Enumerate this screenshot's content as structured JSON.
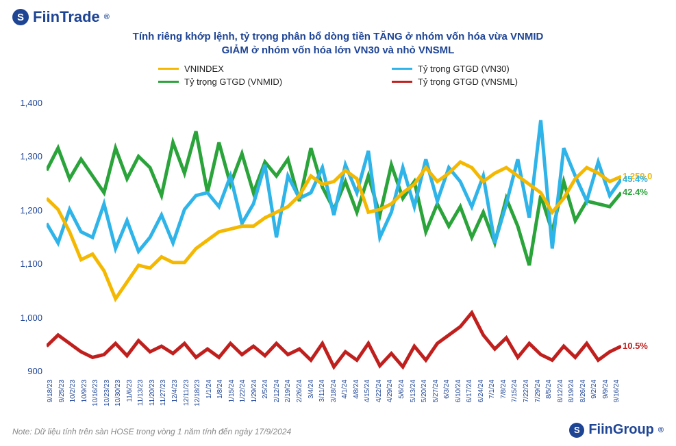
{
  "brand_top": "FiinTrade",
  "brand_bottom": "FiinGroup",
  "brand_reg": "®",
  "title_line1": "Tính riêng khớp lệnh, tỷ trọng phân bổ dòng tiền TĂNG ở nhóm vốn hóa vừa VNMID",
  "title_line2": "GIẢM ở nhóm vốn hóa lớn VN30 và nhỏ VNSML",
  "legend": {
    "vnindex": "VNINDEX",
    "vn30": "Tỷ trọng GTGD (VN30)",
    "vnmid": "Tỷ trọng GTGD (VNMID)",
    "vnsml": "Tỷ trọng GTGD (VNSML)"
  },
  "note": "Note: Dữ liệu tính trên sàn HOSE trong vòng 1 năm tính đến ngày 17/9/2024",
  "chart": {
    "type": "line",
    "background_color": "#ffffff",
    "line_width": 1.6,
    "ylim": [
      900,
      1400
    ],
    "ytick_step": 100,
    "yticks": [
      "1,400",
      "1,300",
      "1,200",
      "1,100",
      "1,000",
      "900"
    ],
    "axis_color": "#1e4494",
    "label_fontsize": 13,
    "xlabels": [
      "9/18/23",
      "9/25/23",
      "10/2/23",
      "10/9/23",
      "10/16/23",
      "10/23/23",
      "10/30/23",
      "11/6/23",
      "11/13/23",
      "11/20/23",
      "11/27/23",
      "12/4/23",
      "12/11/23",
      "12/18/23",
      "1/1/24",
      "1/8/24",
      "1/15/24",
      "1/22/24",
      "1/29/24",
      "2/5/24",
      "2/12/24",
      "2/19/24",
      "2/26/24",
      "3/4/24",
      "3/11/24",
      "3/18/24",
      "4/1/24",
      "4/8/24",
      "4/15/24",
      "4/22/24",
      "4/29/24",
      "5/6/24",
      "5/13/24",
      "5/20/24",
      "5/27/24",
      "6/3/24",
      "6/10/24",
      "6/17/24",
      "6/24/24",
      "7/1/24",
      "7/8/24",
      "7/15/24",
      "7/22/24",
      "7/29/24",
      "8/5/24",
      "8/12/24",
      "8/19/24",
      "8/26/24",
      "9/2/24",
      "9/9/24",
      "9/16/24"
    ],
    "series": {
      "vnindex": {
        "color": "#f5b800",
        "end_label": "1,259.0",
        "data": [
          1220,
          1200,
          1160,
          1110,
          1120,
          1090,
          1040,
          1070,
          1100,
          1095,
          1115,
          1105,
          1105,
          1130,
          1145,
          1160,
          1165,
          1170,
          1170,
          1185,
          1195,
          1205,
          1225,
          1260,
          1245,
          1250,
          1270,
          1255,
          1195,
          1200,
          1210,
          1230,
          1245,
          1275,
          1250,
          1265,
          1285,
          1275,
          1250,
          1265,
          1275,
          1260,
          1245,
          1230,
          1195,
          1220,
          1255,
          1275,
          1265,
          1250,
          1259
        ]
      },
      "vn30": {
        "color": "#2fb4e9",
        "end_label": "45.4%",
        "data": [
          1175,
          1140,
          1200,
          1160,
          1150,
          1210,
          1130,
          1180,
          1125,
          1150,
          1190,
          1140,
          1200,
          1225,
          1230,
          1205,
          1260,
          1175,
          1210,
          1280,
          1150,
          1260,
          1220,
          1230,
          1275,
          1190,
          1280,
          1230,
          1305,
          1150,
          1195,
          1275,
          1205,
          1290,
          1215,
          1275,
          1250,
          1205,
          1260,
          1140,
          1210,
          1290,
          1185,
          1360,
          1130,
          1310,
          1260,
          1215,
          1285,
          1225,
          1254
        ]
      },
      "vnmid": {
        "color": "#2aa43a",
        "end_label": "42.4%",
        "data": [
          1270,
          1310,
          1255,
          1290,
          1260,
          1230,
          1310,
          1255,
          1295,
          1275,
          1225,
          1320,
          1265,
          1340,
          1230,
          1320,
          1245,
          1300,
          1230,
          1285,
          1260,
          1290,
          1215,
          1310,
          1240,
          1200,
          1250,
          1195,
          1260,
          1190,
          1280,
          1220,
          1250,
          1160,
          1210,
          1170,
          1205,
          1150,
          1195,
          1140,
          1220,
          1170,
          1100,
          1225,
          1160,
          1250,
          1180,
          1215,
          1210,
          1205,
          1230
        ]
      },
      "vnsml": {
        "color": "#c0201d",
        "end_label": "10.5%",
        "data": [
          955,
          975,
          960,
          945,
          935,
          940,
          960,
          938,
          965,
          945,
          955,
          942,
          960,
          935,
          950,
          935,
          960,
          940,
          955,
          938,
          960,
          940,
          950,
          930,
          960,
          918,
          945,
          930,
          960,
          920,
          942,
          918,
          955,
          930,
          960,
          975,
          990,
          1015,
          975,
          950,
          970,
          935,
          960,
          940,
          930,
          955,
          935,
          960,
          930,
          945,
          955
        ]
      }
    }
  }
}
